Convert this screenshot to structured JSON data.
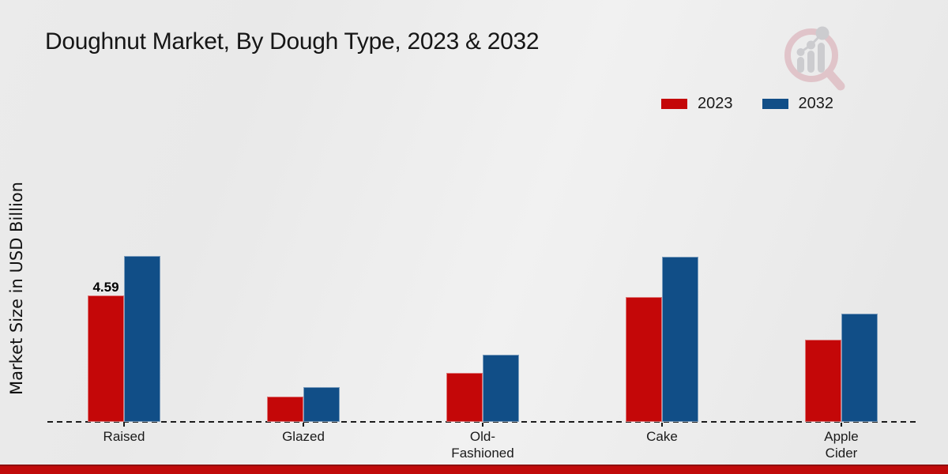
{
  "chart_data": {
    "type": "bar",
    "title": "Doughnut Market, By Dough Type, 2023 & 2032",
    "ylabel": "Market Size in USD Billion",
    "xlabel": "",
    "categories": [
      "Raised",
      "Glazed",
      "Old-\nFashioned",
      "Cake",
      "Apple\nCider"
    ],
    "series": [
      {
        "name": "2023",
        "color": "#c40708",
        "values": [
          4.59,
          0.92,
          1.78,
          4.53,
          2.98
        ]
      },
      {
        "name": "2032",
        "color": "#114e87",
        "values": [
          6.02,
          1.26,
          2.44,
          6.0,
          3.93
        ]
      }
    ],
    "bar_labels": [
      {
        "series": "2023",
        "category_index": 0,
        "text": "4.59"
      }
    ],
    "ylim": [
      0,
      7.5
    ],
    "grid": false,
    "y_axis_ticks_visible": false,
    "baseline_style": "dashed-black",
    "legend_position": "top-right"
  },
  "watermark_icon": "magnifier-bar-chart-logo",
  "footer_bar_color": "#c00a0a"
}
